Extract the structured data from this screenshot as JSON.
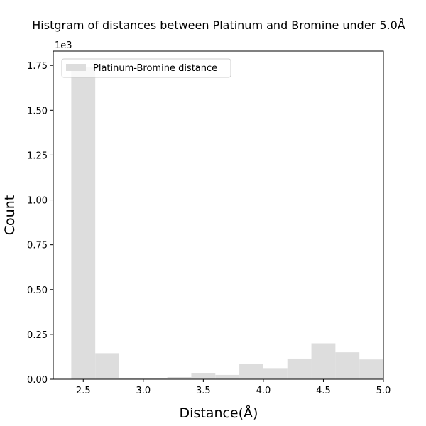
{
  "chart_data": {
    "type": "bar",
    "title": "Histgram of distances between Platinum and Bromine under 5.0Å",
    "xlabel": "Distance(Å)",
    "ylabel": "Count",
    "y_offset_text": "1e3",
    "xlim": [
      2.25,
      5.0
    ],
    "ylim": [
      0,
      1.83
    ],
    "x_ticks": [
      2.5,
      3.0,
      3.5,
      4.0,
      4.5,
      5.0
    ],
    "x_tick_labels": [
      "2.5",
      "3.0",
      "3.5",
      "4.0",
      "4.5",
      "5.0"
    ],
    "y_ticks": [
      0.0,
      0.25,
      0.5,
      0.75,
      1.0,
      1.25,
      1.5,
      1.75
    ],
    "y_tick_labels": [
      "0.00",
      "0.25",
      "0.50",
      "0.75",
      "1.00",
      "1.25",
      "1.50",
      "1.75"
    ],
    "bin_edges": [
      2.4,
      2.6,
      2.8,
      3.0,
      3.2,
      3.4,
      3.6,
      3.8,
      4.0,
      4.2,
      4.4,
      4.6,
      4.8,
      5.0
    ],
    "series": [
      {
        "name": "Platinum-Bromine distance",
        "values": [
          1.74,
          0.145,
          0.008,
          0.004,
          0.012,
          0.032,
          0.024,
          0.085,
          0.058,
          0.115,
          0.2,
          0.15,
          0.11
        ],
        "color": "#dddddd"
      }
    ],
    "legend_position": "top-left",
    "grid": false
  }
}
